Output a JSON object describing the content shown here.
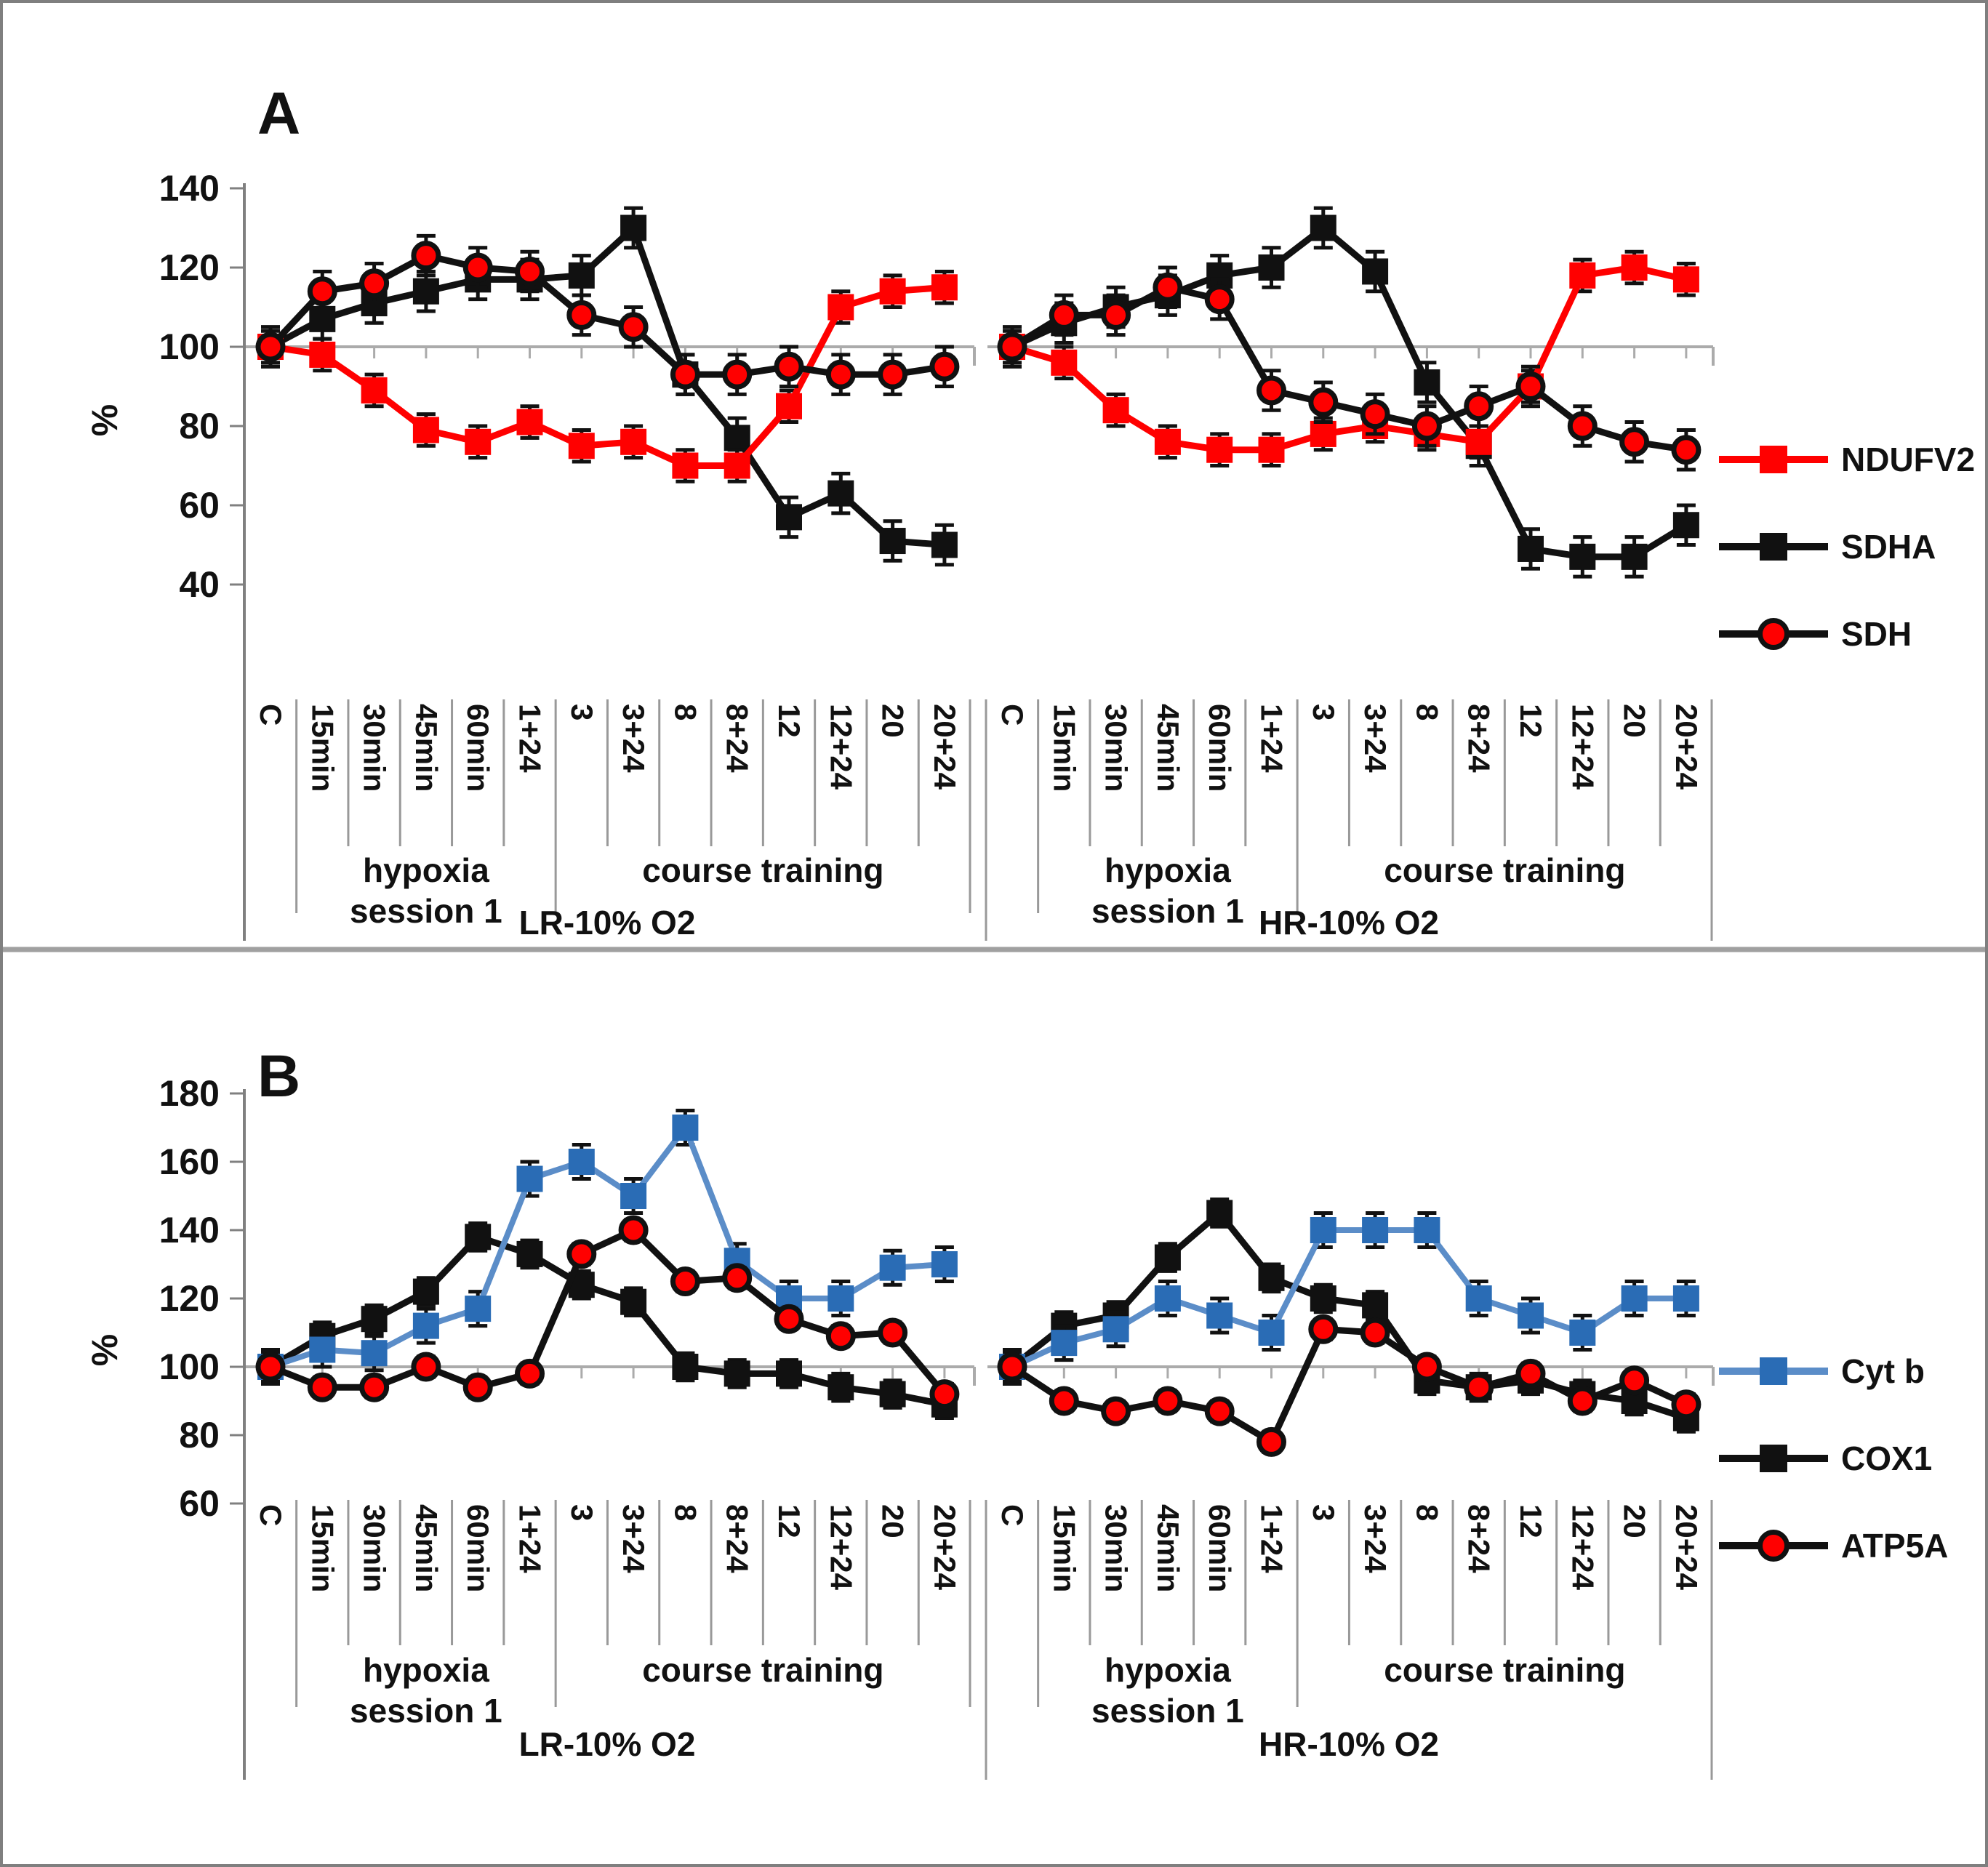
{
  "figure": {
    "ylabel": "%",
    "border_color": "#7f7f7f",
    "colors": {
      "red": "#ff0000",
      "black": "#111111",
      "blue_marker": "#2a6cb5",
      "blue_line": "#5b8dc8",
      "baseline_gray": "#ababab",
      "axis_gray": "#808080",
      "separator_gray": "#999999"
    }
  },
  "chart_data": [
    {
      "type": "line",
      "panel_label": "A",
      "ylabel": "%",
      "ylim": [
        40,
        140
      ],
      "yticks": [
        140,
        120,
        100,
        80,
        60,
        40
      ],
      "baseline": 100,
      "grid": false,
      "legend_position": "right",
      "categories": [
        "C",
        "15min",
        "30min",
        "45min",
        "60min",
        "1+24",
        "3",
        "3+24",
        "8",
        "8+24",
        "12",
        "12+24",
        "20",
        "20+24"
      ],
      "phase_labels": {
        "hypoxia_line1": "hypoxia",
        "hypoxia_line2": "session 1",
        "training": "course training"
      },
      "legend": [
        "NDUFV2",
        "SDHA",
        "SDH"
      ],
      "groups": [
        {
          "label": "LR-10% O2",
          "series": [
            {
              "name": "NDUFV2",
              "marker": "square",
              "marker_color": "#ff0000",
              "line_color": "#ff0000",
              "err": 4,
              "values": [
                100,
                98,
                89,
                79,
                76,
                81,
                75,
                76,
                70,
                70,
                85,
                110,
                114,
                115
              ]
            },
            {
              "name": "SDHA",
              "marker": "square",
              "marker_color": "#111111",
              "line_color": "#111111",
              "err": 5,
              "values": [
                100,
                107,
                111,
                114,
                117,
                117,
                118,
                130,
                93,
                77,
                57,
                63,
                51,
                50
              ]
            },
            {
              "name": "SDH",
              "marker": "circle",
              "marker_color": "#ff0000",
              "line_color": "#111111",
              "err": 5,
              "values": [
                100,
                114,
                116,
                123,
                120,
                119,
                108,
                105,
                93,
                93,
                95,
                93,
                93,
                95
              ]
            }
          ]
        },
        {
          "label": "HR-10% O2",
          "series": [
            {
              "name": "NDUFV2",
              "marker": "square",
              "marker_color": "#ff0000",
              "line_color": "#ff0000",
              "err": 4,
              "values": [
                100,
                96,
                84,
                76,
                74,
                74,
                78,
                80,
                78,
                76,
                90,
                118,
                120,
                117
              ]
            },
            {
              "name": "SDHA",
              "marker": "square",
              "marker_color": "#111111",
              "line_color": "#111111",
              "err": 5,
              "values": [
                100,
                106,
                110,
                113,
                118,
                120,
                130,
                119,
                91,
                75,
                49,
                47,
                47,
                55
              ]
            },
            {
              "name": "SDH",
              "marker": "circle",
              "marker_color": "#ff0000",
              "line_color": "#111111",
              "err": 5,
              "values": [
                100,
                108,
                108,
                115,
                112,
                89,
                86,
                83,
                80,
                85,
                90,
                80,
                76,
                74
              ]
            }
          ]
        }
      ]
    },
    {
      "type": "line",
      "panel_label": "B",
      "ylabel": "%",
      "ylim": [
        60,
        180
      ],
      "yticks": [
        180,
        160,
        140,
        120,
        100,
        80,
        60
      ],
      "baseline": 100,
      "grid": false,
      "legend_position": "right",
      "categories": [
        "C",
        "15min",
        "30min",
        "45min",
        "60min",
        "1+24",
        "3",
        "3+24",
        "8",
        "8+24",
        "12",
        "12+24",
        "20",
        "20+24"
      ],
      "phase_labels": {
        "hypoxia_line1": "hypoxia",
        "hypoxia_line2": "session 1",
        "training": "course training"
      },
      "legend": [
        "Cyt b",
        "COX1",
        "ATP5A"
      ],
      "groups": [
        {
          "label": "LR-10% O2",
          "series": [
            {
              "name": "Cyt b",
              "marker": "square",
              "marker_color": "#2a6cb5",
              "line_color": "#5b8dc8",
              "err": 5,
              "values": [
                100,
                105,
                104,
                112,
                117,
                155,
                160,
                150,
                170,
                131,
                120,
                120,
                129,
                130
              ]
            },
            {
              "name": "COX1",
              "marker": "square",
              "marker_color": "#111111",
              "line_color": "#111111",
              "err": 4,
              "values": [
                100,
                109,
                114,
                122,
                138,
                133,
                124,
                119,
                100,
                98,
                98,
                94,
                92,
                89
              ]
            },
            {
              "name": "ATP5A",
              "marker": "circle",
              "marker_color": "#ff0000",
              "line_color": "#111111",
              "err": 3,
              "values": [
                100,
                94,
                94,
                100,
                94,
                98,
                133,
                140,
                125,
                126,
                114,
                109,
                110,
                92
              ]
            }
          ]
        },
        {
          "label": "HR-10% O2",
          "series": [
            {
              "name": "Cyt b",
              "marker": "square",
              "marker_color": "#2a6cb5",
              "line_color": "#5b8dc8",
              "err": 5,
              "values": [
                100,
                107,
                111,
                120,
                115,
                110,
                140,
                140,
                140,
                120,
                115,
                110,
                120,
                120
              ]
            },
            {
              "name": "COX1",
              "marker": "square",
              "marker_color": "#111111",
              "line_color": "#111111",
              "err": 4,
              "values": [
                100,
                112,
                115,
                132,
                145,
                126,
                120,
                118,
                96,
                94,
                96,
                92,
                90,
                85
              ]
            },
            {
              "name": "ATP5A",
              "marker": "circle",
              "marker_color": "#ff0000",
              "line_color": "#111111",
              "err": 3,
              "values": [
                100,
                90,
                87,
                90,
                87,
                78,
                111,
                110,
                100,
                94,
                98,
                90,
                96,
                89
              ]
            }
          ]
        }
      ]
    }
  ]
}
